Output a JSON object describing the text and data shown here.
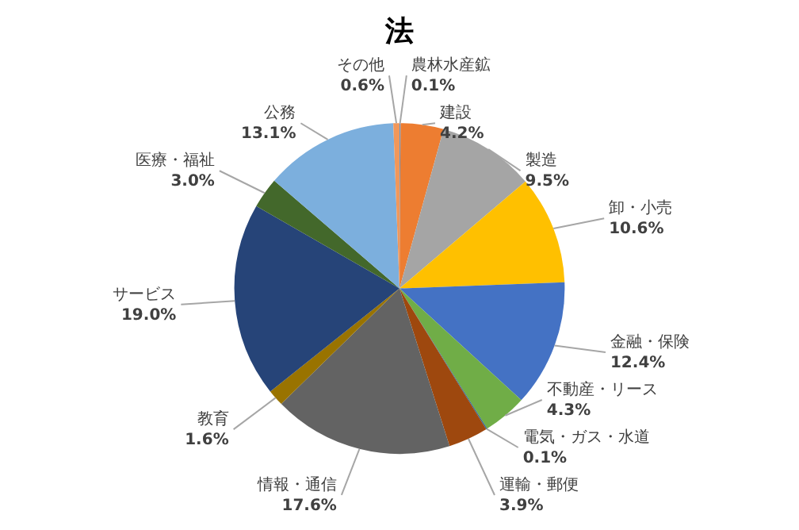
{
  "chart_data": {
    "type": "pie",
    "title": "法",
    "categories": [
      "農林水産鉱",
      "建設",
      "製造",
      "卸・小売",
      "金融・保険",
      "不動産・リース",
      "電気・ガス・水道",
      "運輸・郵便",
      "情報・通信",
      "教育",
      "サービス",
      "医療・福祉",
      "公務",
      "その他"
    ],
    "values": [
      0.1,
      4.2,
      9.5,
      10.6,
      12.4,
      4.3,
      0.1,
      3.9,
      17.6,
      1.6,
      19.0,
      3.0,
      13.1,
      0.6
    ],
    "value_labels": [
      "0.1%",
      "4.2%",
      "9.5%",
      "10.6%",
      "12.4%",
      "4.3%",
      "0.1%",
      "3.9%",
      "17.6%",
      "1.6%",
      "19.0%",
      "3.0%",
      "13.1%",
      "0.6%"
    ],
    "colors": [
      "#5b9bd5",
      "#ed7d31",
      "#a5a5a5",
      "#ffc000",
      "#4472c4",
      "#70ad47",
      "#255e91",
      "#9e480e",
      "#636363",
      "#997300",
      "#264478",
      "#43682b",
      "#7cafdd",
      "#f1975a"
    ],
    "legend": false
  }
}
